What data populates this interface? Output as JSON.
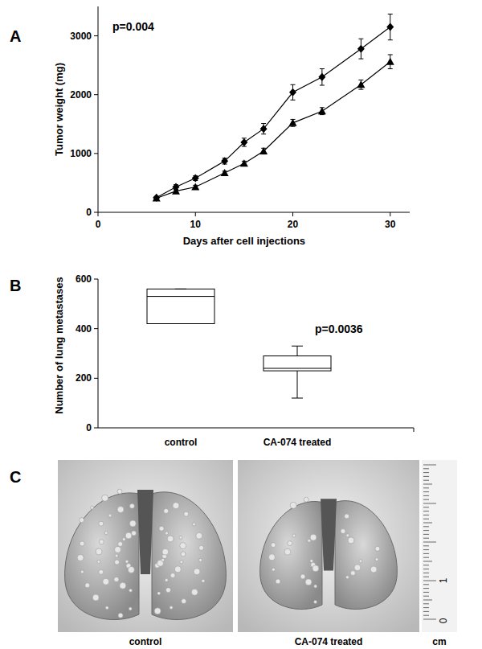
{
  "chart_data": [
    {
      "type": "line",
      "panel_label": "A",
      "annotation": "p=0.004",
      "x_label": "Days after cell injections",
      "y_label": "Tumor weight (mg)",
      "x": [
        6,
        8,
        10,
        13,
        15,
        17,
        20,
        23,
        27,
        30
      ],
      "series": [
        {
          "color": "#000000",
          "marker": "diamond",
          "line_style": "solid",
          "values": [
            250,
            430,
            580,
            870,
            1190,
            1420,
            2040,
            2300,
            2780,
            3150
          ],
          "errors": [
            20,
            40,
            40,
            50,
            70,
            90,
            130,
            140,
            170,
            220
          ]
        },
        {
          "color": "#000000",
          "marker": "triangle",
          "line_style": "solid",
          "values": [
            240,
            360,
            430,
            670,
            830,
            1040,
            1520,
            1720,
            2170,
            2560
          ],
          "errors": [
            20,
            20,
            30,
            30,
            40,
            50,
            60,
            60,
            80,
            120
          ]
        }
      ],
      "xlim": [
        0,
        32
      ],
      "xticks": [
        0,
        10,
        20,
        30
      ],
      "ylim": [
        0,
        3500
      ],
      "yticks": [
        0,
        1000,
        2000,
        3000
      ],
      "grid": false
    },
    {
      "type": "box",
      "panel_label": "B",
      "annotation": "p=0.0036",
      "y_label": "Number of lung metastases",
      "categories": [
        "control",
        "CA-074 treated"
      ],
      "boxes": [
        {
          "min": 420,
          "q1": 420,
          "median": 530,
          "q3": 560,
          "max": 560
        },
        {
          "min": 120,
          "q1": 230,
          "median": 240,
          "q3": 290,
          "max": 330
        }
      ],
      "color": "#000000",
      "ylim": [
        0,
        600
      ],
      "yticks": [
        0,
        200,
        400,
        600
      ],
      "grid": false
    }
  ],
  "panel_c": {
    "panel_label": "C",
    "captions": [
      "control",
      "CA-074 treated"
    ],
    "ruler_unit": "cm",
    "ruler_labels": [
      "1",
      "0"
    ]
  }
}
